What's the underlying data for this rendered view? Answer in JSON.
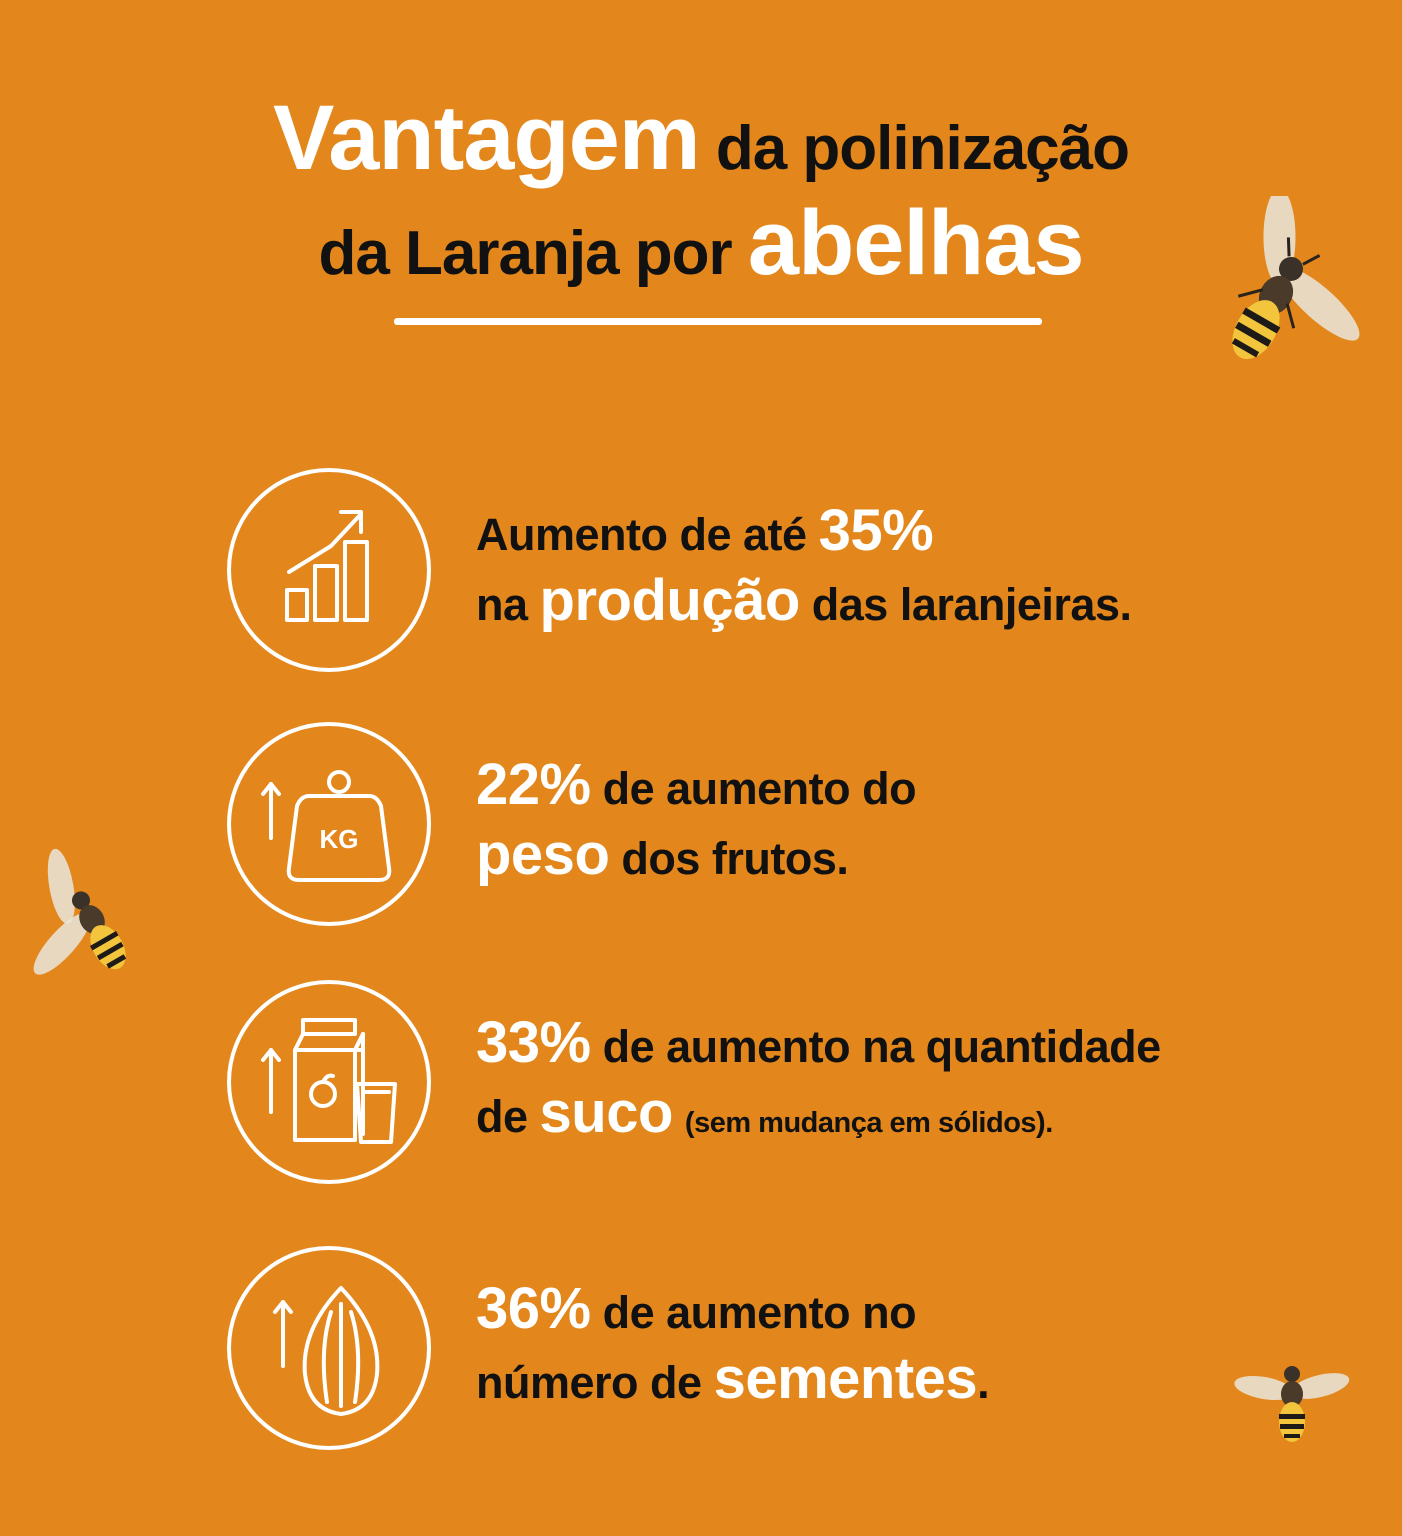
{
  "title": {
    "highlight1": "Vantagem",
    "rest1": "da polinização",
    "rest2": "da Laranja por",
    "highlight2": "abelhas"
  },
  "items": [
    {
      "icon": "bar-chart-growth-icon",
      "l1a": "Aumento de até",
      "l1b": "35%",
      "l2a": "na",
      "l2b": "produção",
      "l2c": "das laranjeiras."
    },
    {
      "icon": "weight-kg-icon",
      "kg": "KG",
      "l1b": "22%",
      "l1c": "de aumento do",
      "l2b": "peso",
      "l2c": "dos frutos."
    },
    {
      "icon": "juice-carton-icon",
      "l1b": "33%",
      "l1c": "de aumento na quantidade",
      "l2a": "de",
      "l2b": "suco",
      "l2small": "(sem mudança em sólidos)."
    },
    {
      "icon": "seed-icon",
      "l1b": "36%",
      "l1c": "de aumento no",
      "l2a": "número de",
      "l2b": "sementes",
      "l2c": "."
    }
  ],
  "colors": {
    "background": "#E3871C",
    "highlight": "#FFFFFF",
    "text": "#111111"
  }
}
